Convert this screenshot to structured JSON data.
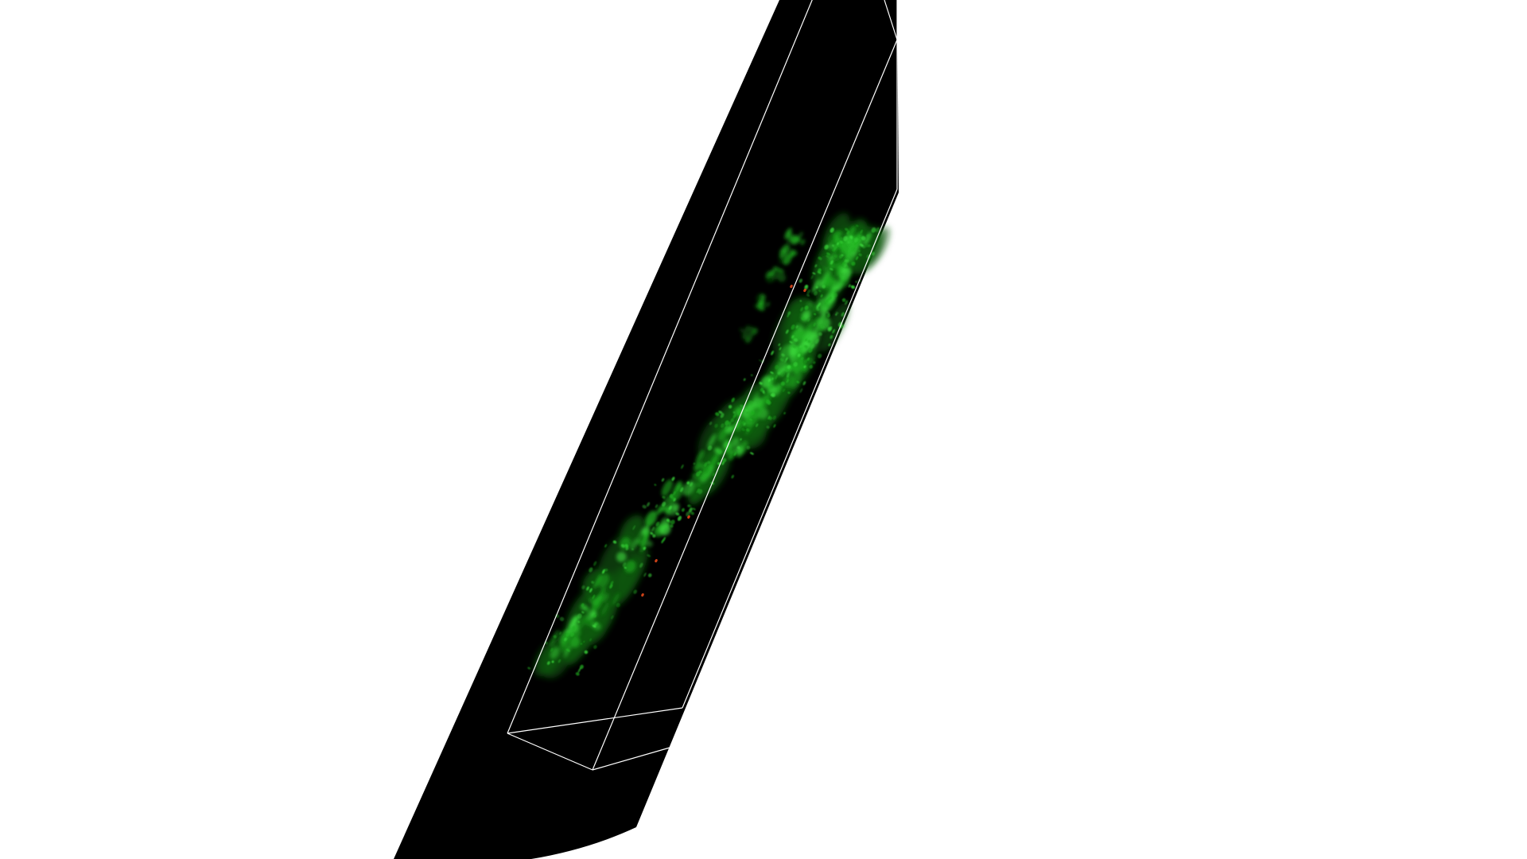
{
  "viewer": {
    "background_color": "#ffffff",
    "volume_background_color": "#000000",
    "bounding_box_color": "#ffffff",
    "signal_colors": {
      "primary": "#1fae1f",
      "bright": "#3ddc3d",
      "dim": "#0d5a0d",
      "hotspot": "#e0481a"
    }
  }
}
